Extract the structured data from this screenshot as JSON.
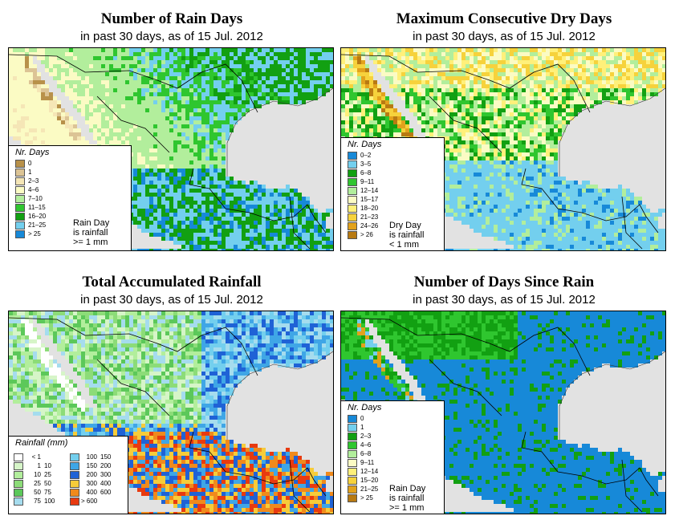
{
  "panels": [
    {
      "title": "Number of Rain Days",
      "subtitle": "in past 30 days, as of  15 Jul. 2012",
      "legend_title": "Nr. Days",
      "note": [
        "Rain Day",
        "is rainfall",
        ">= 1 mm"
      ],
      "legend": [
        {
          "label": "0",
          "color": "#b8914a"
        },
        {
          "label": "1",
          "color": "#dcc495"
        },
        {
          "label": "2–3",
          "color": "#f5e6b6"
        },
        {
          "label": "4–6",
          "color": "#fbfbc4"
        },
        {
          "label": "7–10",
          "color": "#b2ee9c"
        },
        {
          "label": "11–15",
          "color": "#2fc62f"
        },
        {
          "label": "16–20",
          "color": "#12a012"
        },
        {
          "label": "21–25",
          "color": "#73cfee"
        },
        {
          "label": "> 25",
          "color": "#1789d8"
        }
      ]
    },
    {
      "title": "Maximum Consecutive Dry Days",
      "subtitle": "in past 30 days, as of  15 Jul. 2012",
      "legend_title": "Nr. Days",
      "note": [
        "Dry Day",
        "is rainfall",
        "< 1 mm"
      ],
      "legend": [
        {
          "label": "0–2",
          "color": "#1789d8"
        },
        {
          "label": "3–5",
          "color": "#73cfee"
        },
        {
          "label": "6–8",
          "color": "#12a012"
        },
        {
          "label": "9–11",
          "color": "#2fc62f"
        },
        {
          "label": "12–14",
          "color": "#b2ee9c"
        },
        {
          "label": "15–17",
          "color": "#fbfbc4"
        },
        {
          "label": "18–20",
          "color": "#fff07a"
        },
        {
          "label": "21–23",
          "color": "#f6d23c"
        },
        {
          "label": "24–26",
          "color": "#e2a21c"
        },
        {
          "label": "> 26",
          "color": "#b87a12"
        }
      ]
    },
    {
      "title": "Total Accumulated Rainfall",
      "subtitle": "in past 30 days, as of  15 Jul. 2012",
      "legend_title": "Rainfall (mm)",
      "legend_col1": [
        {
          "lo": "< 1",
          "hi": "",
          "color": "#ffffff"
        },
        {
          "lo": "1",
          "hi": "10",
          "color": "#d6f5c8"
        },
        {
          "lo": "10",
          "hi": "25",
          "color": "#b2ee9c"
        },
        {
          "lo": "25",
          "hi": "50",
          "color": "#8cdc78"
        },
        {
          "lo": "50",
          "hi": "75",
          "color": "#5cc85a"
        },
        {
          "lo": "75",
          "hi": "100",
          "color": "#a5dcee"
        }
      ],
      "legend_col2": [
        {
          "lo": "100",
          "hi": "150",
          "color": "#73cfee"
        },
        {
          "lo": "150",
          "hi": "200",
          "color": "#3fa6e6"
        },
        {
          "lo": "200",
          "hi": "300",
          "color": "#1f62d6"
        },
        {
          "lo": "300",
          "hi": "400",
          "color": "#f6cc3a"
        },
        {
          "lo": "400",
          "hi": "600",
          "color": "#f08a1c"
        },
        {
          "lo": "> 600",
          "hi": "",
          "color": "#e83a10"
        }
      ]
    },
    {
      "title": "Number of Days Since Rain",
      "subtitle": "in past 30 days, as of  15 Jul. 2012",
      "legend_title": "Nr. Days",
      "note": [
        "Rain Day",
        "is rainfall",
        ">= 1 mm"
      ],
      "legend": [
        {
          "label": "0",
          "color": "#1789d8"
        },
        {
          "label": "1",
          "color": "#73cfee"
        },
        {
          "label": "2–3",
          "color": "#12a012"
        },
        {
          "label": "4–6",
          "color": "#2fc62f"
        },
        {
          "label": "6–8",
          "color": "#b2ee9c"
        },
        {
          "label": "9–11",
          "color": "#fbfbc4"
        },
        {
          "label": "12–14",
          "color": "#fff07a"
        },
        {
          "label": "15–20",
          "color": "#f6d23c"
        },
        {
          "label": "21–25",
          "color": "#e2a21c"
        },
        {
          "label": "> 25",
          "color": "#b87a12"
        }
      ]
    }
  ]
}
